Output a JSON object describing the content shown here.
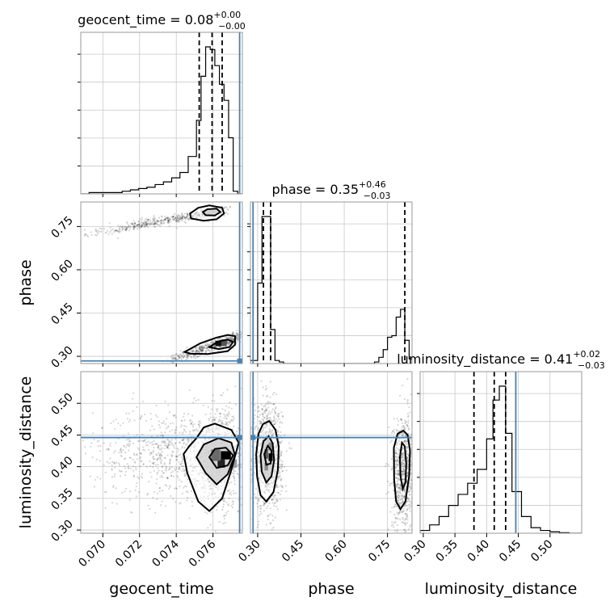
{
  "chart_data": {
    "type": "corner",
    "parameters": [
      "geocent_time",
      "phase",
      "luminosity_distance"
    ],
    "truth_color": "#4682b4",
    "truths": {
      "geocent_time": 0.07745,
      "phase": 0.284,
      "luminosity_distance": 0.446
    },
    "ranges": {
      "geocent_time": [
        0.0688,
        0.0776
      ],
      "phase": [
        0.275,
        0.835
      ],
      "luminosity_distance": [
        0.295,
        0.55
      ]
    },
    "ticks": {
      "geocent_time": [
        "0.070",
        "0.072",
        "0.074",
        "0.076"
      ],
      "phase": [
        "0.30",
        "0.45",
        "0.60",
        "0.75"
      ],
      "luminosity_distance": [
        "0.30",
        "0.35",
        "0.40",
        "0.45",
        "0.50"
      ]
    },
    "titles": [
      {
        "param": "geocent_time",
        "base": "geocent_time = 0.08",
        "plus": "+0.00",
        "minus": "−0.00"
      },
      {
        "param": "phase",
        "base": "phase = 0.35",
        "plus": "+0.46",
        "minus": "−0.03"
      },
      {
        "param": "luminosity_distance",
        "base": "luminosity_distance = 0.41",
        "plus": "+0.02",
        "minus": "−0.03"
      }
    ],
    "quantiles": {
      "geocent_time": [
        0.07525,
        0.07595,
        0.0765
      ],
      "phase": [
        0.32,
        0.345,
        0.81
      ],
      "luminosity_distance": [
        0.38,
        0.412,
        0.43
      ]
    },
    "histograms": {
      "geocent_time": {
        "edges": [
          0.0688,
          0.06925,
          0.0697,
          0.07015,
          0.0706,
          0.07105,
          0.0715,
          0.07195,
          0.0724,
          0.07285,
          0.0733,
          0.07375,
          0.0742,
          0.07465,
          0.0751,
          0.07535,
          0.0756,
          0.07585,
          0.0761,
          0.07635,
          0.0766,
          0.07685,
          0.0771,
          0.07735,
          0.0776
        ],
        "counts": [
          0,
          1,
          1,
          1,
          1,
          2,
          3,
          4,
          5,
          7,
          9,
          12,
          16,
          28,
          55,
          88,
          110,
          108,
          96,
          82,
          70,
          42,
          2,
          0
        ]
      },
      "phase": {
        "edges": [
          0.275,
          0.3,
          0.315,
          0.33,
          0.345,
          0.36,
          0.375,
          0.39,
          0.705,
          0.72,
          0.735,
          0.75,
          0.765,
          0.78,
          0.795,
          0.81,
          0.825,
          0.835
        ],
        "counts": [
          2,
          52,
          95,
          95,
          22,
          2,
          1,
          0,
          1,
          4,
          9,
          17,
          18,
          30,
          35,
          15,
          3
        ]
      },
      "luminosity_distance": {
        "edges": [
          0.295,
          0.31,
          0.325,
          0.34,
          0.355,
          0.37,
          0.385,
          0.4,
          0.41,
          0.42,
          0.43,
          0.44,
          0.455,
          0.47,
          0.485,
          0.5,
          0.515,
          0.53,
          0.55
        ],
        "counts": [
          1,
          3,
          6,
          10,
          14,
          18,
          23,
          34,
          48,
          53,
          36,
          15,
          6,
          2,
          1,
          0.5,
          0.2,
          0
        ]
      }
    },
    "samples_2d": [
      {
        "x": "geocent_time",
        "y": "phase",
        "clusters": [
          {
            "type": "band",
            "x0": 0.0688,
            "x1": 0.0765,
            "y0": 0.72,
            "y1": 0.815,
            "n": 520,
            "jitter": [
              0.0003,
              0.008
            ]
          },
          {
            "type": "band",
            "x0": 0.0735,
            "x1": 0.0774,
            "y0": 0.285,
            "y1": 0.375,
            "n": 520,
            "jitter": [
              0.0003,
              0.01
            ]
          }
        ],
        "contours": [
          [
            [
              0.07475,
              0.795
            ],
            [
              0.0752,
              0.815
            ],
            [
              0.0758,
              0.823
            ],
            [
              0.0765,
              0.815
            ],
            [
              0.0766,
              0.795
            ],
            [
              0.0762,
              0.775
            ],
            [
              0.0755,
              0.77
            ],
            [
              0.0748,
              0.778
            ]
          ],
          [
            [
              0.07545,
              0.8
            ],
            [
              0.0757,
              0.81
            ],
            [
              0.0762,
              0.812
            ],
            [
              0.0764,
              0.8
            ],
            [
              0.0761,
              0.788
            ],
            [
              0.0756,
              0.789
            ]
          ],
          [
            [
              0.07445,
              0.315
            ],
            [
              0.0753,
              0.345
            ],
            [
              0.0762,
              0.365
            ],
            [
              0.0768,
              0.374
            ],
            [
              0.0772,
              0.37
            ],
            [
              0.0772,
              0.34
            ],
            [
              0.0768,
              0.318
            ],
            [
              0.0757,
              0.308
            ],
            [
              0.0748,
              0.309
            ]
          ],
          [
            [
              0.0758,
              0.332
            ],
            [
              0.0763,
              0.352
            ],
            [
              0.0768,
              0.358
            ],
            [
              0.0771,
              0.35
            ],
            [
              0.0769,
              0.332
            ],
            [
              0.0763,
              0.325
            ]
          ]
        ],
        "dense": [
          [
            0.07635,
            0.345,
            0.00045,
            0.018,
            "#111111"
          ],
          [
            0.0766,
            0.345,
            0.0003,
            0.018,
            "#555555"
          ]
        ]
      },
      {
        "x": "geocent_time",
        "y": "luminosity_distance",
        "clusters": [
          {
            "type": "blob",
            "cx": 0.0745,
            "cy": 0.42,
            "sx": 0.0025,
            "sy": 0.035,
            "n": 950
          },
          {
            "type": "blob",
            "cx": 0.0763,
            "cy": 0.41,
            "sx": 0.0007,
            "sy": 0.04,
            "n": 650
          }
        ],
        "contours": [
          [
            [
              0.0744,
              0.42
            ],
            [
              0.0746,
              0.39
            ],
            [
              0.0752,
              0.345
            ],
            [
              0.0758,
              0.33
            ],
            [
              0.0765,
              0.35
            ],
            [
              0.077,
              0.395
            ],
            [
              0.0774,
              0.438
            ],
            [
              0.077,
              0.458
            ],
            [
              0.0761,
              0.468
            ],
            [
              0.0755,
              0.462
            ],
            [
              0.0751,
              0.445
            ],
            [
              0.0747,
              0.432
            ]
          ],
          [
            [
              0.0751,
              0.415
            ],
            [
              0.0756,
              0.39
            ],
            [
              0.0762,
              0.372
            ],
            [
              0.0768,
              0.388
            ],
            [
              0.0772,
              0.418
            ],
            [
              0.077,
              0.438
            ],
            [
              0.0763,
              0.445
            ],
            [
              0.0755,
              0.435
            ]
          ],
          [
            [
              0.0758,
              0.415
            ],
            [
              0.0762,
              0.398
            ],
            [
              0.0768,
              0.402
            ],
            [
              0.0771,
              0.418
            ],
            [
              0.0767,
              0.43
            ],
            [
              0.0761,
              0.428
            ]
          ]
        ],
        "dense": [
          [
            0.0767,
            0.418,
            0.00055,
            0.013,
            "#000000"
          ],
          [
            0.07645,
            0.405,
            0.0004,
            0.013,
            "#222222"
          ],
          [
            0.07615,
            0.418,
            0.0005,
            0.018,
            "#6a6a6a"
          ],
          [
            0.0771,
            0.405,
            0.0004,
            0.013,
            "#9a9a9a"
          ]
        ]
      },
      {
        "x": "phase",
        "y": "luminosity_distance",
        "clusters": [
          {
            "type": "blob",
            "cx": 0.335,
            "cy": 0.415,
            "sx": 0.025,
            "sy": 0.04,
            "n": 1100
          },
          {
            "type": "blob",
            "cx": 0.805,
            "cy": 0.39,
            "sx": 0.02,
            "sy": 0.045,
            "n": 720
          }
        ],
        "contours": [
          [
            [
              0.295,
              0.42
            ],
            [
              0.298,
              0.385
            ],
            [
              0.31,
              0.355
            ],
            [
              0.33,
              0.345
            ],
            [
              0.355,
              0.36
            ],
            [
              0.37,
              0.395
            ],
            [
              0.373,
              0.432
            ],
            [
              0.362,
              0.458
            ],
            [
              0.34,
              0.472
            ],
            [
              0.318,
              0.467
            ],
            [
              0.303,
              0.452
            ]
          ],
          [
            [
              0.31,
              0.418
            ],
            [
              0.314,
              0.392
            ],
            [
              0.33,
              0.375
            ],
            [
              0.348,
              0.385
            ],
            [
              0.357,
              0.41
            ],
            [
              0.352,
              0.437
            ],
            [
              0.338,
              0.448
            ],
            [
              0.32,
              0.44
            ]
          ],
          [
            [
              0.323,
              0.42
            ],
            [
              0.33,
              0.403
            ],
            [
              0.345,
              0.405
            ],
            [
              0.348,
              0.425
            ],
            [
              0.335,
              0.433
            ]
          ]
        ],
        "contours_right": [
          [
            [
              0.772,
              0.43
            ],
            [
              0.773,
              0.38
            ],
            [
              0.78,
              0.345
            ],
            [
              0.795,
              0.333
            ],
            [
              0.812,
              0.345
            ],
            [
              0.825,
              0.385
            ],
            [
              0.828,
              0.425
            ],
            [
              0.82,
              0.45
            ],
            [
              0.805,
              0.457
            ],
            [
              0.785,
              0.452
            ]
          ],
          [
            [
              0.793,
              0.415
            ],
            [
              0.795,
              0.385
            ],
            [
              0.803,
              0.365
            ],
            [
              0.812,
              0.375
            ],
            [
              0.815,
              0.405
            ],
            [
              0.81,
              0.432
            ],
            [
              0.8,
              0.438
            ]
          ]
        ],
        "dense": [
          [
            0.345,
            0.415,
            0.014,
            0.012,
            "#000000"
          ],
          [
            0.33,
            0.42,
            0.012,
            0.015,
            "#555555"
          ],
          [
            0.345,
            0.432,
            0.015,
            0.012,
            "#888888"
          ],
          [
            0.33,
            0.4,
            0.012,
            0.012,
            "#8a8a8a"
          ]
        ]
      }
    ]
  }
}
